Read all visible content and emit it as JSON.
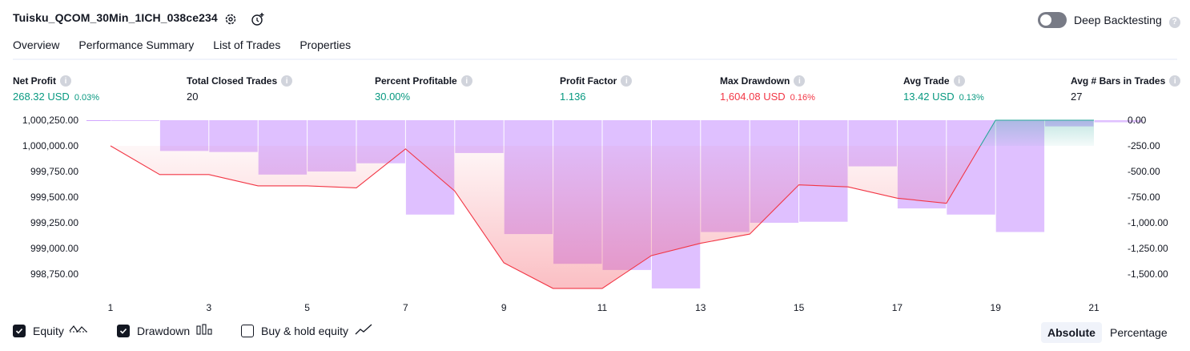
{
  "header": {
    "title": "Tuisku_QCOM_30Min_1ICH_038ce234",
    "deep_backtesting_label": "Deep Backtesting",
    "deep_backtesting_on": false
  },
  "tabs": [
    {
      "label": "Overview",
      "active": true
    },
    {
      "label": "Performance Summary",
      "active": false
    },
    {
      "label": "List of Trades",
      "active": false
    },
    {
      "label": "Properties",
      "active": false
    }
  ],
  "metrics": {
    "net_profit": {
      "label": "Net Profit",
      "value": "268.32 USD",
      "pct": "0.03%"
    },
    "total_closed_trades": {
      "label": "Total Closed Trades",
      "value": "20"
    },
    "percent_profitable": {
      "label": "Percent Profitable",
      "value": "30.00%"
    },
    "profit_factor": {
      "label": "Profit Factor",
      "value": "1.136"
    },
    "max_drawdown": {
      "label": "Max Drawdown",
      "value": "1,604.08 USD",
      "pct": "0.16%"
    },
    "avg_trade": {
      "label": "Avg Trade",
      "value": "13.42 USD",
      "pct": "0.13%"
    },
    "avg_bars": {
      "label": "Avg # Bars in Trades",
      "value": "27"
    }
  },
  "colors": {
    "positive": "#089981",
    "negative": "#f23645",
    "drawdown_bar": "#d1a5ff",
    "equity_line_loss": "#f23645",
    "equity_line_gain": "#26a69a"
  },
  "chart_data": {
    "type": "line",
    "x_ticks": [
      "1",
      "3",
      "5",
      "7",
      "9",
      "11",
      "13",
      "15",
      "17",
      "19",
      "21"
    ],
    "left_axis": {
      "ticks": [
        "1,000,250.00",
        "1,000,000.00",
        "999,750.00",
        "999,500.00",
        "999,250.00",
        "999,000.00",
        "998,750.00"
      ],
      "range": [
        998650,
        1000250
      ]
    },
    "right_axis": {
      "ticks": [
        "0.00",
        "-250.00",
        "-500.00",
        "-750.00",
        "-1,000.00",
        "-1,250.00",
        "-1,500.00"
      ],
      "range": [
        -1600,
        0
      ]
    },
    "equity": {
      "baseline": 1000000,
      "x": [
        1,
        2,
        3,
        4,
        5,
        6,
        7,
        8,
        9,
        10,
        11,
        12,
        13,
        14,
        15,
        16,
        17,
        18,
        19,
        20,
        21
      ],
      "values": [
        1000000,
        999720,
        999720,
        999610,
        999610,
        999590,
        999970,
        999560,
        998860,
        998610,
        998610,
        998930,
        999050,
        999140,
        999620,
        999600,
        999490,
        999440,
        1000250,
        1000250,
        1000250
      ]
    },
    "drawdown": {
      "x": [
        1,
        2,
        3,
        4,
        5,
        6,
        7,
        8,
        9,
        10,
        11,
        12,
        13,
        14,
        15,
        16,
        17,
        18,
        19,
        20,
        21
      ],
      "values": [
        0,
        -300,
        -310,
        -530,
        -500,
        -420,
        -920,
        -320,
        -1110,
        -1400,
        -1460,
        -1640,
        -1090,
        -1000,
        -990,
        -450,
        -860,
        -920,
        -1090,
        -60,
        -20
      ]
    }
  },
  "legend": [
    {
      "label": "Equity",
      "checked": true,
      "icon": "equity-wave-icon"
    },
    {
      "label": "Drawdown",
      "checked": true,
      "icon": "drawdown-bars-icon"
    },
    {
      "label": "Buy & hold equity",
      "checked": false,
      "icon": "buy-hold-line-icon"
    }
  ],
  "view_mode": {
    "absolute": "Absolute",
    "percentage": "Percentage",
    "selected": "Absolute"
  }
}
